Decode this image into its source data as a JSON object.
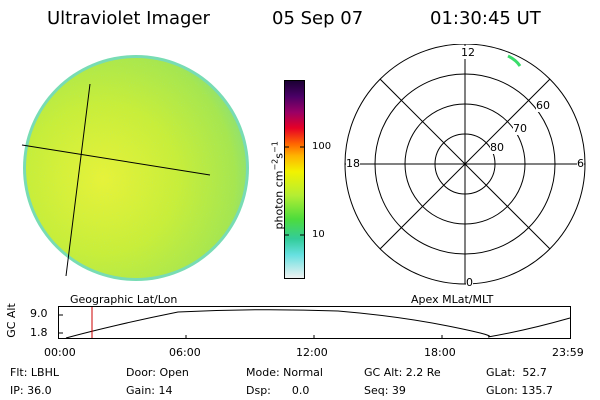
{
  "header": {
    "instrument": "Ultraviolet Imager",
    "date": "05 Sep 07",
    "time": "01:30:45 UT"
  },
  "colorbar": {
    "unit_label": "photon cm^-2 s^-1",
    "unit_text": "photon cm",
    "unit_exp1": "−2",
    "unit_mid": "s",
    "unit_exp2": "−1",
    "ticks": [
      "100",
      "10"
    ]
  },
  "geo_panel": {
    "label": "Geographic Lat/Lon"
  },
  "polar_panel": {
    "label": "Apex MLat/MLT",
    "mlt_labels": {
      "top": "12",
      "left": "18",
      "right": "6",
      "bottom": "0"
    },
    "lat_labels": [
      "60",
      "70",
      "80"
    ]
  },
  "altitude_plot": {
    "ylabel": "GC Alt",
    "y_ticks": [
      "9.0",
      "1.8"
    ],
    "x_ticks": [
      "00:00",
      "06:00",
      "12:00",
      "18:00",
      "23:59"
    ]
  },
  "footer": {
    "flt": "Flt: LBHL",
    "ip": "IP: 36.0",
    "door": "Door: Open",
    "gain": "Gain: 14",
    "mode": "Mode: Normal",
    "dsp": "Dsp:      0.0",
    "gcalt": "GC Alt: 2.2 Re",
    "seq": "Seq: 39",
    "glat": "GLat:  52.7",
    "glon": "GLon: 135.7"
  },
  "colors": {
    "marker": "#cc0000",
    "image_main": "#c8ee3a",
    "image_edge": "#70dcb0"
  }
}
